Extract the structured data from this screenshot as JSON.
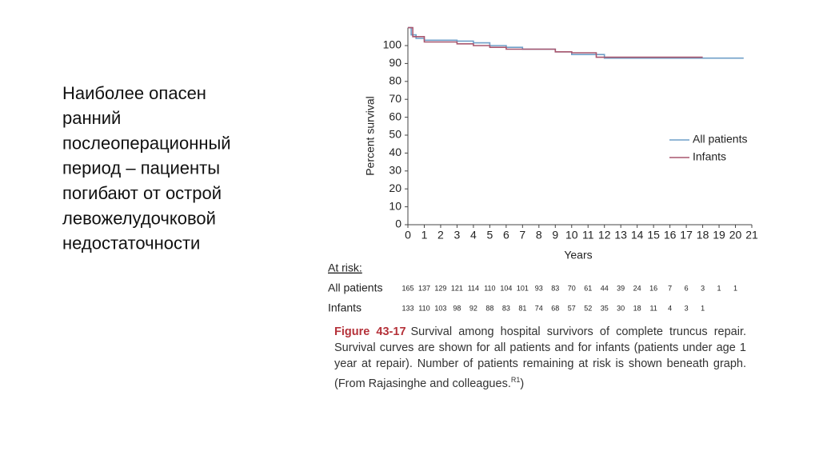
{
  "slide_text": [
    "Наиболее опасен",
    "ранний",
    "послеоперационный",
    "период – пациенты",
    "погибают от острой",
    "левожелудочковой",
    "недостаточности"
  ],
  "chart_data": {
    "type": "line",
    "x_label": "Years",
    "y_label": "Percent survival",
    "xlim": [
      0,
      21
    ],
    "ylim": [
      0,
      110
    ],
    "xticks": [
      0,
      1,
      2,
      3,
      4,
      5,
      6,
      7,
      8,
      9,
      10,
      11,
      12,
      13,
      14,
      15,
      16,
      17,
      18,
      19,
      20,
      21
    ],
    "yticks": [
      0,
      10,
      20,
      30,
      40,
      50,
      60,
      70,
      80,
      90,
      100
    ],
    "legend": "right",
    "series": [
      {
        "name": "All patients",
        "color": "#6f9fc8",
        "x": [
          0,
          0.2,
          0.2,
          0.5,
          0.5,
          1,
          1,
          3,
          3,
          4,
          4,
          5,
          5,
          6,
          6,
          7,
          7,
          9,
          9,
          10,
          10,
          12,
          12,
          20.5
        ],
        "values": [
          110,
          110,
          106,
          106,
          104,
          104,
          103,
          103,
          102.5,
          102.5,
          101.5,
          101.5,
          100,
          100,
          99,
          99,
          98,
          98,
          96.5,
          96.5,
          95,
          95,
          93,
          93
        ]
      },
      {
        "name": "Infants",
        "color": "#a8566e",
        "x": [
          0,
          0.3,
          0.3,
          1,
          1,
          3,
          3,
          4,
          4,
          5,
          5,
          6,
          6,
          9,
          9,
          10,
          10,
          11.5,
          11.5,
          18
        ],
        "values": [
          110,
          110,
          105,
          105,
          102,
          102,
          101,
          101,
          100,
          100,
          99,
          99,
          98,
          98,
          96.5,
          96.5,
          96,
          96,
          93.5,
          93.5
        ]
      }
    ],
    "at_risk": {
      "title": "At risk:",
      "rows": [
        {
          "name": "All patients",
          "values": [
            165,
            137,
            129,
            121,
            114,
            110,
            104,
            101,
            93,
            83,
            70,
            61,
            44,
            39,
            24,
            16,
            7,
            6,
            3,
            1,
            1
          ]
        },
        {
          "name": "Infants",
          "values": [
            133,
            110,
            103,
            98,
            92,
            88,
            83,
            81,
            74,
            68,
            57,
            52,
            35,
            30,
            18,
            11,
            4,
            3,
            1
          ]
        }
      ]
    }
  },
  "caption": {
    "figure": "Figure 43-17",
    "text": "Survival among hospital survivors of complete truncus repair. Survival curves are shown for all patients and for infants (patients under age 1 year at repair). Number of patients remaining at risk is shown beneath graph. (From Rajasinghe and colleagues.",
    "superscript": "R1",
    "text_end": ")"
  }
}
